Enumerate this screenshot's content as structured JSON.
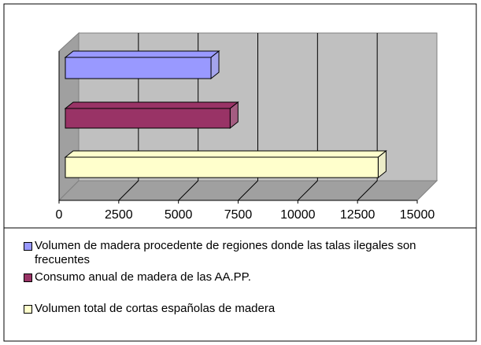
{
  "chart_data": {
    "type": "bar3d",
    "series": [
      {
        "name": "Volumen de madera procedente de regiones donde las talas ilegales son frecuentes",
        "color": "#9999ff",
        "values": [
          6100
        ]
      },
      {
        "name": "Consumo anual de madera de las AA.PP.",
        "color": "#993366",
        "values": [
          6900
        ]
      },
      {
        "name": "Volumen total de cortas españolas de madera",
        "color": "#ffffcc",
        "values": [
          13100
        ]
      }
    ],
    "xlim": [
      0,
      15000
    ],
    "xticks": [
      0,
      2500,
      5000,
      7500,
      10000,
      12500,
      15000
    ],
    "grid": true
  }
}
